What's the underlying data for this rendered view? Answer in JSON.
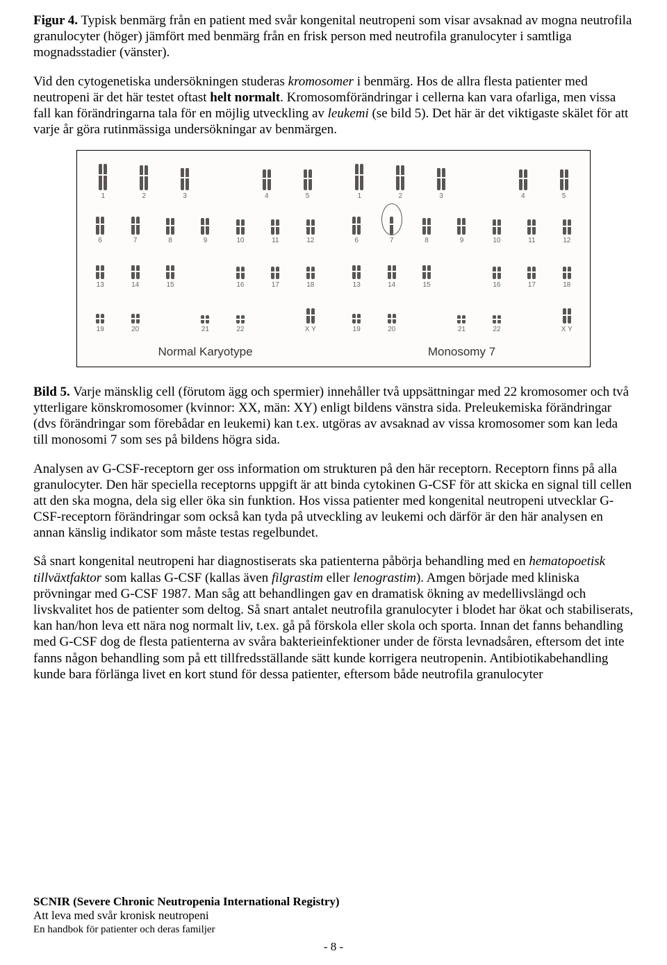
{
  "para1": {
    "lead": "Figur 4.",
    "text": " Typisk benmärg från en patient med svår kongenital neutropeni som visar avsaknad av mogna neutrofila granulocyter (höger) jämfört med benmärg från en frisk person med neutrofila granulocyter i samtliga mognadsstadier (vänster)."
  },
  "para2": {
    "s1a": "Vid den cytogenetiska undersökningen studeras ",
    "s1i": "kromosomer",
    "s1b": " i benmärg. Hos de allra flesta patienter med neutropeni är det här testet oftast ",
    "s1bold": "helt normalt",
    "s1c": ". Kromosomförändringar i cellerna kan vara ofarliga, men vissa fall kan förändringarna tala för en möjlig utveckling av ",
    "s1i2": "leukemi",
    "s1d": " (se bild 5). Det här är det viktigaste skälet för att varje år göra rutinmässiga undersökningar av benmärgen."
  },
  "figure": {
    "left_caption": "Normal Karyotype",
    "right_caption": "Monosomy 7",
    "chrom_color": "#5a5552",
    "bg_color": "#fdfcfa",
    "label_color": "#666666",
    "rows": [
      {
        "labels": [
          "1",
          "2",
          "3",
          "",
          "4",
          "5"
        ],
        "heights": [
          38,
          36,
          32,
          0,
          30,
          30
        ],
        "blanks": [
          3
        ]
      },
      {
        "labels": [
          "6",
          "7",
          "8",
          "9",
          "10",
          "11",
          "12"
        ],
        "heights": [
          26,
          26,
          24,
          24,
          22,
          22,
          22
        ],
        "cols": 7
      },
      {
        "labels": [
          "13",
          "14",
          "15",
          "",
          "16",
          "17",
          "18"
        ],
        "heights": [
          20,
          20,
          20,
          0,
          18,
          18,
          18
        ],
        "blanks": [
          3
        ],
        "cols": 7
      },
      {
        "labels": [
          "19",
          "20",
          "",
          "21",
          "22",
          "",
          "X Y"
        ],
        "heights": [
          14,
          14,
          0,
          12,
          12,
          0,
          22
        ],
        "blanks": [
          2,
          5
        ],
        "cols": 7
      }
    ],
    "monosomy_row": 1,
    "monosomy_col": 1
  },
  "para3": {
    "lead": "Bild 5.",
    "text": " Varje mänsklig cell (förutom ägg och spermier) innehåller två uppsättningar med 22 kromosomer och två ytterligare könskromosomer (kvinnor: XX, män: XY) enligt bildens vänstra sida. Preleukemiska förändringar (dvs förändringar som förebådar en leukemi) kan t.ex. utgöras av avsaknad av vissa kromosomer som kan leda till monosomi 7 som ses på bildens högra sida."
  },
  "para4": "Analysen av G-CSF-receptorn ger oss information om strukturen på den här receptorn. Receptorn finns på alla granulocyter. Den här speciella receptorns uppgift är att binda cytokinen G-CSF för att skicka en signal till cellen att den ska mogna, dela sig eller öka sin funktion. Hos vissa patienter med kongenital neutropeni utvecklar G-CSF-receptorn förändringar som också kan tyda på utveckling av leukemi och därför är den här analysen en annan känslig indikator som måste testas regelbundet.",
  "para5": {
    "a": "Så snart kongenital neutropeni har diagnostiserats ska patienterna påbörja behandling med en ",
    "i1": "hematopoetisk tillväxtfaktor",
    "b": " som kallas G-CSF (kallas även ",
    "i2": "filgrastim",
    "c": " eller ",
    "i3": "lenograstim",
    "d": "). Amgen började med kliniska prövningar med G-CSF 1987. Man såg att behandlingen gav en dramatisk ökning av medellivslängd och livskvalitet hos de patienter som deltog. Så snart antalet neutrofila granulocyter i blodet har ökat och stabiliserats, kan han/hon leva ett nära nog normalt liv, t.ex. gå på förskola eller skola och sporta. Innan det fanns behandling med G-CSF dog de flesta patienterna av svåra bakterieinfektioner under de första levnadsåren, eftersom det inte fanns någon behandling som på ett tillfredsställande sätt kunde korrigera neutropenin. Antibiotikabehandling kunde bara förlänga livet en kort stund för dessa patienter, eftersom både neutrofila granulocyter"
  },
  "footer": {
    "l1": "SCNIR (Severe Chronic Neutropenia International Registry)",
    "l2": "Att leva med svår kronisk neutropeni",
    "l3": "En handbok för patienter och deras familjer",
    "page": "- 8 -"
  }
}
